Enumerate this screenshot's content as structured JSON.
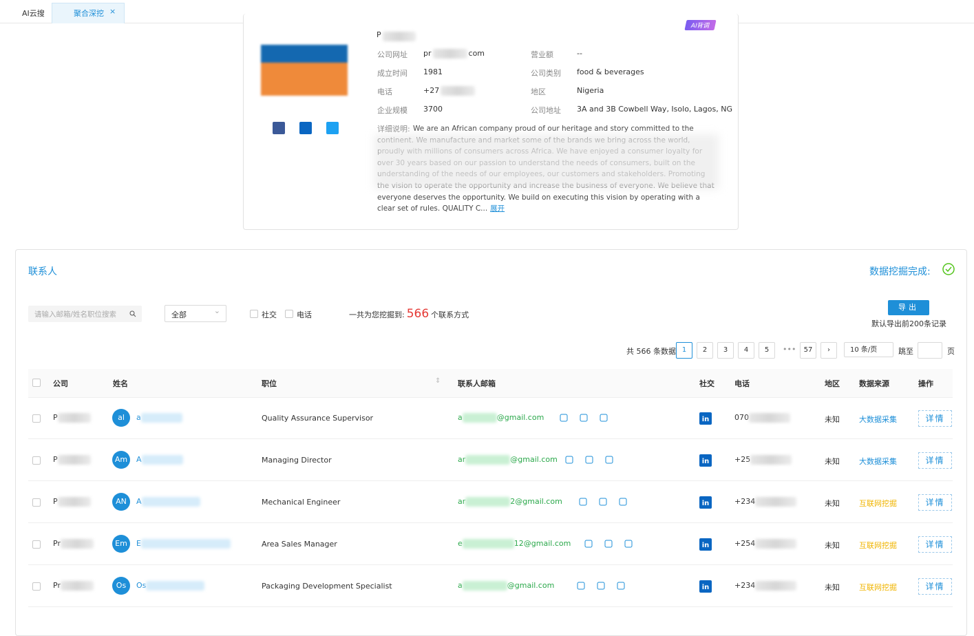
{
  "tabs": [
    "AI云搜",
    "聚合深挖"
  ],
  "company": {
    "name": "P",
    "badge": "AI背调",
    "fields": [
      {
        "label": "公司网址",
        "parts": [
          "pr",
          "com"
        ]
      },
      {
        "label": "营业额",
        "parts": [
          "--"
        ]
      },
      {
        "label": "成立时间",
        "parts": [
          "1981"
        ]
      },
      {
        "label": "公司类别",
        "parts": [
          "food & beverages"
        ]
      },
      {
        "label": "电话",
        "parts": [
          "+27",
          ""
        ]
      },
      {
        "label": "地区",
        "parts": [
          "Nigeria"
        ]
      },
      {
        "label": "企业规模",
        "parts": [
          "3700"
        ]
      },
      {
        "label": "公司地址",
        "parts": [
          "3A and 3B Cowbell Way, Isolo, Lagos, NG"
        ]
      }
    ],
    "description_label": "详细说明:",
    "description": "We are an African company proud of our heritage and story committed to the continent. We manufacture and market some of the brands we bring across the world, proudly with millions of consumers across Africa. We have enjoyed a consumer loyalty for over 30 years based on our passion to understand the needs of consumers, built on the understanding of the needs of our employees, our customers and stakeholders. Promoting the vision to operate the opportunity and increase the business of everyone. We believe that everyone deserves the opportunity. We build on executing this vision by operating with a clear set of rules. QUALITY C...",
    "expand": "展开"
  },
  "contacts": {
    "title": "联系人",
    "status": "数据挖掘完成:",
    "search_placeholder": "请输入邮箱/姓名职位搜索",
    "select": "全部",
    "filters": [
      "社交",
      "电话"
    ],
    "summary_prefix": "一共为您挖掘到:",
    "count": 566,
    "summary_suffix": "个联系方式",
    "export": "导出",
    "export_note": "默认导出前200条记录",
    "pagination": {
      "total": "共 566 条数据",
      "pages": [
        1,
        2,
        3,
        4,
        5
      ],
      "ellipsis": "•••",
      "last": 57,
      "page_size": "10 条/页",
      "jump": "跳至",
      "jump_suffix": "页"
    },
    "headers": [
      "公司",
      "姓名",
      "职位",
      "联系人邮箱",
      "社交",
      "电话",
      "地区",
      "数据来源",
      "操作"
    ],
    "rows": [
      {
        "company": "P",
        "avatar": "al",
        "name": "a",
        "title": "Quality Assurance Supervisor",
        "email": [
          "a",
          "@gmail.com"
        ],
        "phone": "070",
        "region": "未知",
        "source": {
          "text": "大数据采集",
          "color": "#1e8fd8"
        },
        "action": "详情"
      },
      {
        "company": "P",
        "avatar": "Am",
        "name": "A",
        "title": "Managing Director",
        "email": [
          "ar",
          "@gmail.com"
        ],
        "phone": "+25",
        "region": "未知",
        "source": {
          "text": "大数据采集",
          "color": "#1e8fd8"
        },
        "action": "详情"
      },
      {
        "company": "P",
        "avatar": "AN",
        "name": "A",
        "title": "Mechanical Engineer",
        "email": [
          "ar",
          "2@gmail.com"
        ],
        "phone": "+234",
        "region": "未知",
        "source": {
          "text": "互联网挖掘",
          "color": "#f0b400"
        },
        "action": "详情"
      },
      {
        "company": "Pr",
        "avatar": "Em",
        "name": "E",
        "title": "Area Sales Manager",
        "email": [
          "e",
          "12@gmail.com"
        ],
        "phone": "+254",
        "region": "未知",
        "source": {
          "text": "互联网挖掘",
          "color": "#f0b400"
        },
        "action": "详情"
      },
      {
        "company": "Pr",
        "avatar": "Os",
        "name": "Os",
        "title": "Packaging Development Specialist",
        "email": [
          "a",
          "@gmail.com"
        ],
        "phone": "+234",
        "region": "未知",
        "source": {
          "text": "互联网挖掘",
          "color": "#f0b400"
        },
        "action": "详情"
      }
    ]
  }
}
